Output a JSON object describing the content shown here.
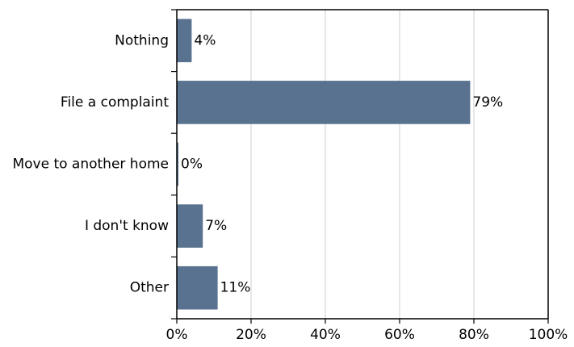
{
  "chart_data": {
    "type": "bar",
    "orientation": "horizontal",
    "categories": [
      "Nothing",
      "File a complaint",
      "Move to another home",
      "I don't know",
      "Other"
    ],
    "values": [
      4,
      79,
      0,
      7,
      11
    ],
    "data_labels": [
      "4%",
      "79%",
      "0%",
      "7%",
      "11%"
    ],
    "xlim": [
      0,
      100
    ],
    "x_ticks": [
      0,
      20,
      40,
      60,
      80,
      100
    ],
    "x_tick_labels": [
      "0%",
      "20%",
      "40%",
      "60%",
      "80%",
      "100%"
    ],
    "grid": "vertical",
    "bar_color": "#58728f"
  }
}
